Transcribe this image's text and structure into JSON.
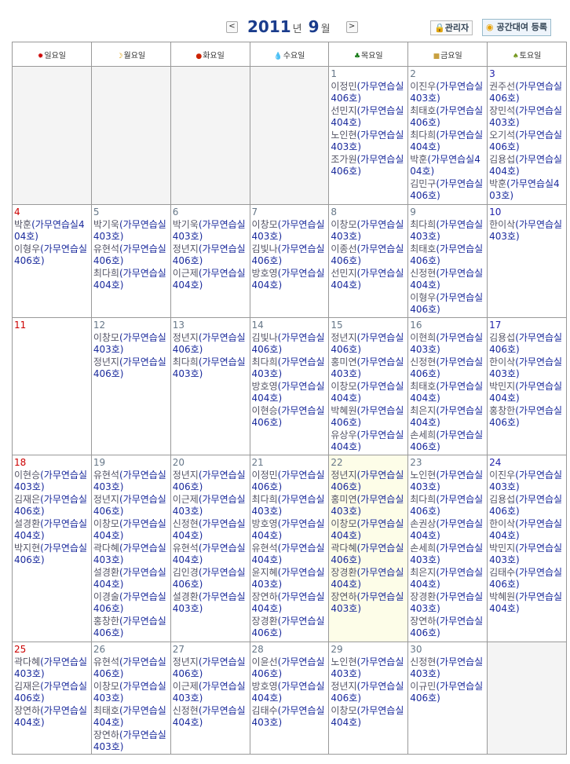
{
  "header": {
    "prev": "<",
    "next": ">",
    "year": "2011",
    "year_unit": "년",
    "month": "9",
    "month_unit": "월",
    "admin_label": "관리자",
    "register_label": "공간대여 등록"
  },
  "weekdays": [
    {
      "label": "일요일",
      "icon": "sun-icon",
      "glyph": "✹",
      "color": "#cc0000"
    },
    {
      "label": "월요일",
      "icon": "moon-icon",
      "glyph": "☽",
      "color": "#e0a000"
    },
    {
      "label": "화요일",
      "icon": "fire-icon",
      "glyph": "●",
      "color": "#cc2200"
    },
    {
      "label": "수요일",
      "icon": "water-drop-icon",
      "glyph": "💧",
      "color": "#3388cc"
    },
    {
      "label": "목요일",
      "icon": "tree-icon",
      "glyph": "♣",
      "color": "#117711"
    },
    {
      "label": "금요일",
      "icon": "gold-icon",
      "glyph": "■",
      "color": "#c8a040"
    },
    {
      "label": "토요일",
      "icon": "earth-icon",
      "glyph": "♠",
      "color": "#779922"
    }
  ],
  "today": 22,
  "weeks": [
    [
      null,
      null,
      null,
      null,
      {
        "day": "1",
        "events": [
          {
            "name": "이정민",
            "room": "(가무연습실 406호)"
          },
          {
            "name": "선민지",
            "room": "(가무연습실 404호)"
          },
          {
            "name": "노인현",
            "room": "(가무연습실 403호)"
          },
          {
            "name": "조가원",
            "room": "(가무연습실 406호)"
          }
        ]
      },
      {
        "day": "2",
        "events": [
          {
            "name": "이진우",
            "room": "(가무연습실 403호)"
          },
          {
            "name": "최태호",
            "room": "(가무연습실 406호)"
          },
          {
            "name": "최다희",
            "room": "(가무연습실 404호)"
          },
          {
            "name": "박훈",
            "room": "(가무연습실404호)"
          },
          {
            "name": "김민구",
            "room": "(가무연습실 406호)"
          }
        ]
      },
      {
        "day": "3",
        "events": [
          {
            "name": "권주선",
            "room": "(가무연습실 406호)"
          },
          {
            "name": "장민석",
            "room": "(가무연습실 403호)"
          },
          {
            "name": "오기석",
            "room": "(가무연습실 406호)"
          },
          {
            "name": "김용섭",
            "room": "(가무연습실 404호)"
          },
          {
            "name": "박훈",
            "room": "(가무연습실403호)"
          }
        ]
      }
    ],
    [
      {
        "day": "4",
        "events": [
          {
            "name": "박훈",
            "room": "(가무연습실404호)"
          },
          {
            "name": "이형우",
            "room": "(가무연습실 406호)"
          }
        ]
      },
      {
        "day": "5",
        "events": [
          {
            "name": "박기욱",
            "room": "(가무연습실 403호)"
          },
          {
            "name": "유현석",
            "room": "(가무연습실 406호)"
          },
          {
            "name": "최다희",
            "room": "(가무연습실 404호)"
          }
        ]
      },
      {
        "day": "6",
        "events": [
          {
            "name": "박기욱",
            "room": "(가무연습실 403호)"
          },
          {
            "name": "정년지",
            "room": "(가무연습실 406호)"
          },
          {
            "name": "이근제",
            "room": "(가무연습실 404호)"
          }
        ]
      },
      {
        "day": "7",
        "events": [
          {
            "name": "이창모",
            "room": "(가무연습실 403호)"
          },
          {
            "name": "김빛나",
            "room": "(가무연습실 406호)"
          },
          {
            "name": "방호영",
            "room": "(가무연습실 404호)"
          }
        ]
      },
      {
        "day": "8",
        "events": [
          {
            "name": "이창모",
            "room": "(가무연습실 403호)"
          },
          {
            "name": "이종선",
            "room": "(가무연습실 406호)"
          },
          {
            "name": "선민지",
            "room": "(가무연습실 404호)"
          }
        ]
      },
      {
        "day": "9",
        "events": [
          {
            "name": "최다희",
            "room": "(가무연습실 403호)"
          },
          {
            "name": "최태호",
            "room": "(가무연습실 406호)"
          },
          {
            "name": "신정현",
            "room": "(가무연습실 404호)"
          },
          {
            "name": "이형우",
            "room": "(가무연습실 406호)"
          }
        ]
      },
      {
        "day": "10",
        "events": [
          {
            "name": "한이삭",
            "room": "(가무연습실 403호)"
          }
        ]
      }
    ],
    [
      {
        "day": "11",
        "events": []
      },
      {
        "day": "12",
        "events": [
          {
            "name": "이창모",
            "room": "(가무연습실 403호)"
          },
          {
            "name": "정년지",
            "room": "(가무연습실 406호)"
          }
        ]
      },
      {
        "day": "13",
        "events": [
          {
            "name": "정년지",
            "room": "(가무연습실 406호)"
          },
          {
            "name": "최다희",
            "room": "(가무연습실 403호)"
          }
        ]
      },
      {
        "day": "14",
        "events": [
          {
            "name": "김빛나",
            "room": "(가무연습실 406호)"
          },
          {
            "name": "최다희",
            "room": "(가무연습실 403호)"
          },
          {
            "name": "방호영",
            "room": "(가무연습실 404호)"
          },
          {
            "name": "이현승",
            "room": "(가무연습실 406호)"
          }
        ]
      },
      {
        "day": "15",
        "events": [
          {
            "name": "정년지",
            "room": "(가무연습실 406호)"
          },
          {
            "name": "홍미연",
            "room": "(가무연습실 403호)"
          },
          {
            "name": "이창모",
            "room": "(가무연습실 404호)"
          },
          {
            "name": "박혜원",
            "room": "(가무연습실 406호)"
          },
          {
            "name": "유상우",
            "room": "(가무연습실 404호)"
          }
        ]
      },
      {
        "day": "16",
        "events": [
          {
            "name": "이현희",
            "room": "(가무연습실 403호)"
          },
          {
            "name": "신정현",
            "room": "(가무연습실 406호)"
          },
          {
            "name": "최태호",
            "room": "(가무연습실 404호)"
          },
          {
            "name": "최은지",
            "room": "(가무연습실 404호)"
          },
          {
            "name": "손세희",
            "room": "(가무연습실 406호)"
          }
        ]
      },
      {
        "day": "17",
        "events": [
          {
            "name": "김용섭",
            "room": "(가무연습실 406호)"
          },
          {
            "name": "한이삭",
            "room": "(가무연습실 403호)"
          },
          {
            "name": "박민지",
            "room": "(가무연습실 404호)"
          },
          {
            "name": "홍창한",
            "room": "(가무연습실 406호)"
          }
        ]
      }
    ],
    [
      {
        "day": "18",
        "events": [
          {
            "name": "이현승",
            "room": "(가무연습실 403호)"
          },
          {
            "name": "김재은",
            "room": "(가무연습실 406호)"
          },
          {
            "name": "설경환",
            "room": "(가무연습실 404호)"
          },
          {
            "name": "박지현",
            "room": "(가무연습실 406호)"
          }
        ]
      },
      {
        "day": "19",
        "events": [
          {
            "name": "유현석",
            "room": "(가무연습실 403호)"
          },
          {
            "name": "정년지",
            "room": "(가무연습실 406호)"
          },
          {
            "name": "이창모",
            "room": "(가무연습실 404호)"
          },
          {
            "name": "곽다혜",
            "room": "(가무연습실 403호)"
          },
          {
            "name": "설경환",
            "room": "(가무연습실 404호)"
          },
          {
            "name": "이경술",
            "room": "(가무연습실 406호)"
          },
          {
            "name": "홍창한",
            "room": "(가무연습실 406호)"
          }
        ]
      },
      {
        "day": "20",
        "events": [
          {
            "name": "정년지",
            "room": "(가무연습실 406호)"
          },
          {
            "name": "이근제",
            "room": "(가무연습실 403호)"
          },
          {
            "name": "신정현",
            "room": "(가무연습실 404호)"
          },
          {
            "name": "유현석",
            "room": "(가무연습실 404호)"
          },
          {
            "name": "김인경",
            "room": "(가무연습실 406호)"
          },
          {
            "name": "설경환",
            "room": "(가무연습실 403호)"
          }
        ]
      },
      {
        "day": "21",
        "events": [
          {
            "name": "이정민",
            "room": "(가무연습실 406호)"
          },
          {
            "name": "최다희",
            "room": "(가무연습실 403호)"
          },
          {
            "name": "방호영",
            "room": "(가무연습실 404호)"
          },
          {
            "name": "유현석",
            "room": "(가무연습실 404호)"
          },
          {
            "name": "윤지혜",
            "room": "(가무연습실 403호)"
          },
          {
            "name": "장연하",
            "room": "(가무연습실 404호)"
          },
          {
            "name": "장경환",
            "room": "(가무연습실 406호)"
          }
        ]
      },
      {
        "day": "22",
        "events": [
          {
            "name": "정년지",
            "room": "(가무연습실 406호)"
          },
          {
            "name": "홍미연",
            "room": "(가무연습실 403호)"
          },
          {
            "name": "이창모",
            "room": "(가무연습실 404호)"
          },
          {
            "name": "곽다혜",
            "room": "(가무연습실 406호)"
          },
          {
            "name": "장경환",
            "room": "(가무연습실 404호)"
          },
          {
            "name": "장연하",
            "room": "(가무연습실 403호)"
          }
        ]
      },
      {
        "day": "23",
        "events": [
          {
            "name": "노인현",
            "room": "(가무연습실 403호)"
          },
          {
            "name": "최다희",
            "room": "(가무연습실 406호)"
          },
          {
            "name": "손권상",
            "room": "(가무연습실 404호)"
          },
          {
            "name": "손세희",
            "room": "(가무연습실 403호)"
          },
          {
            "name": "최은지",
            "room": "(가무연습실 404호)"
          },
          {
            "name": "장경환",
            "room": "(가무연습실 403호)"
          },
          {
            "name": "장연하",
            "room": "(가무연습실 406호)"
          }
        ]
      },
      {
        "day": "24",
        "events": [
          {
            "name": "이진우",
            "room": "(가무연습실 403호)"
          },
          {
            "name": "김용섭",
            "room": "(가무연습실 406호)"
          },
          {
            "name": "한이삭",
            "room": "(가무연습실 404호)"
          },
          {
            "name": "박민지",
            "room": "(가무연습실 403호)"
          },
          {
            "name": "김태수",
            "room": "(가무연습실 406호)"
          },
          {
            "name": "박혜원",
            "room": "(가무연습실 404호)"
          }
        ]
      }
    ],
    [
      {
        "day": "25",
        "events": [
          {
            "name": "곽다혜",
            "room": "(가무연습실 403호)"
          },
          {
            "name": "김재은",
            "room": "(가무연습실 406호)"
          },
          {
            "name": "장연하",
            "room": "(가무연습실 404호)"
          }
        ]
      },
      {
        "day": "26",
        "events": [
          {
            "name": "유현석",
            "room": "(가무연습실 406호)"
          },
          {
            "name": "이창모",
            "room": "(가무연습실 403호)"
          },
          {
            "name": "최태호",
            "room": "(가무연습실 404호)"
          },
          {
            "name": "장연하",
            "room": "(가무연습실 403호)"
          }
        ]
      },
      {
        "day": "27",
        "events": [
          {
            "name": "정년지",
            "room": "(가무연습실 406호)"
          },
          {
            "name": "이근제",
            "room": "(가무연습실 403호)"
          },
          {
            "name": "신정현",
            "room": "(가무연습실 404호)"
          }
        ]
      },
      {
        "day": "28",
        "events": [
          {
            "name": "이윤선",
            "room": "(가무연습실 406호)"
          },
          {
            "name": "방호영",
            "room": "(가무연습실 404호)"
          },
          {
            "name": "김태수",
            "room": "(가무연습실 403호)"
          }
        ]
      },
      {
        "day": "29",
        "events": [
          {
            "name": "노인현",
            "room": "(가무연습실 403호)"
          },
          {
            "name": "정년지",
            "room": "(가무연습실 406호)"
          },
          {
            "name": "이창모",
            "room": "(가무연습실 404호)"
          }
        ]
      },
      {
        "day": "30",
        "events": [
          {
            "name": "신정현",
            "room": "(가무연습실 403호)"
          },
          {
            "name": "이규민",
            "room": "(가무연습실 406호)"
          }
        ]
      },
      null
    ]
  ]
}
